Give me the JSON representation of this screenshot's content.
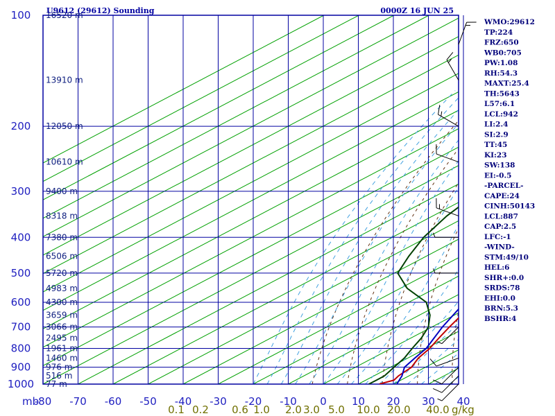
{
  "title_left": "U9612 (29612) Sounding",
  "title_right": "0000Z 16 JUN 25",
  "axis_unit_left": "mb",
  "axis_unit_right": "g/kg",
  "indices": [
    "WMO:29612",
    "TP:224",
    "FRZ:650",
    "WB0:705",
    "PW:1.08",
    "RH:54.3",
    "MAXT:25.4",
    "TH:5643",
    "L57:6.1",
    "LCL:942",
    "LI:2.4",
    "SI:2.9",
    "TT:45",
    "KI:23",
    "SW:138",
    "EI:-0.5",
    "-PARCEL-",
    "CAPE:24",
    "CINH:50143",
    "LCL:887",
    "CAP:2.5",
    "LFC:-1",
    "-WIND-",
    "STM:49/10",
    "HEL:6",
    "SHR+:0.0",
    "SRDS:78",
    "EHI:0.0",
    "BRN:5.3",
    "BSHR:4"
  ],
  "colors": {
    "frame": "#0000a0",
    "isotherm": "#00a000",
    "temperature": "#c00000",
    "dewpoint": "#004000",
    "parcel": "#0000c0",
    "dry_adiabat": "#603010",
    "moist_adiabat": "#40a0e0",
    "mixing_ratio_label": "#707000"
  },
  "chart_data": {
    "type": "line",
    "skew_t": true,
    "pressure_axis": "log",
    "xlim": [
      -80,
      40
    ],
    "ylim": [
      1000,
      100
    ],
    "pressure_ticks": [
      100,
      200,
      300,
      400,
      500,
      600,
      700,
      800,
      900,
      1000
    ],
    "temperature_ticks": [
      -80,
      -70,
      -60,
      -50,
      -40,
      -30,
      -20,
      -10,
      0,
      10,
      20,
      30,
      40
    ],
    "height_labels": [
      {
        "p": 100,
        "label": "16520 m"
      },
      {
        "p": 150,
        "label": "13910 m"
      },
      {
        "p": 200,
        "label": "12050 m"
      },
      {
        "p": 250,
        "label": "10610 m"
      },
      {
        "p": 300,
        "label": "9400 m"
      },
      {
        "p": 350,
        "label": "8318 m"
      },
      {
        "p": 400,
        "label": "7380 m"
      },
      {
        "p": 450,
        "label": "6506 m"
      },
      {
        "p": 500,
        "label": "5720 m"
      },
      {
        "p": 550,
        "label": "4983 m"
      },
      {
        "p": 600,
        "label": "4300 m"
      },
      {
        "p": 650,
        "label": "3659 m"
      },
      {
        "p": 700,
        "label": "3066 m"
      },
      {
        "p": 750,
        "label": "2495 m"
      },
      {
        "p": 800,
        "label": "1961 m"
      },
      {
        "p": 850,
        "label": "1460 m"
      },
      {
        "p": 900,
        "label": "976 m"
      },
      {
        "p": 950,
        "label": "516 m"
      },
      {
        "p": 1000,
        "label": "77 m"
      }
    ],
    "mixing_ratio_labels": [
      "0.1",
      "0.2",
      "0.6",
      "1.0",
      "2.0",
      "3.0",
      "5.0",
      "10.0",
      "20.0",
      "40.0"
    ],
    "series": [
      {
        "name": "temperature",
        "points": [
          [
            100,
            -55
          ],
          [
            145,
            -49
          ],
          [
            165,
            -50
          ],
          [
            205,
            -50
          ],
          [
            235,
            -48
          ],
          [
            255,
            -45
          ],
          [
            300,
            -37
          ],
          [
            350,
            -30
          ],
          [
            400,
            -24
          ],
          [
            450,
            -19
          ],
          [
            500,
            -12
          ],
          [
            550,
            -6
          ],
          [
            600,
            -1
          ],
          [
            650,
            2
          ],
          [
            700,
            5
          ],
          [
            750,
            8
          ],
          [
            800,
            11
          ],
          [
            850,
            13
          ],
          [
            900,
            16
          ],
          [
            950,
            17
          ],
          [
            975,
            18
          ],
          [
            1000,
            16
          ]
        ]
      },
      {
        "name": "dewpoint",
        "points": [
          [
            100,
            -77
          ],
          [
            150,
            -70
          ],
          [
            200,
            -68
          ],
          [
            250,
            -64
          ],
          [
            300,
            -60
          ],
          [
            350,
            -56
          ],
          [
            400,
            -51
          ],
          [
            450,
            -45
          ],
          [
            500,
            -39
          ],
          [
            550,
            -28
          ],
          [
            600,
            -15
          ],
          [
            650,
            -7
          ],
          [
            700,
            -1
          ],
          [
            750,
            3
          ],
          [
            800,
            6
          ],
          [
            850,
            9
          ],
          [
            900,
            11
          ],
          [
            950,
            13
          ],
          [
            975,
            13
          ],
          [
            1000,
            13
          ]
        ]
      },
      {
        "name": "parcel",
        "points": [
          [
            1000,
            21
          ],
          [
            950,
            18
          ],
          [
            900,
            14
          ],
          [
            850,
            12
          ],
          [
            800,
            10
          ],
          [
            700,
            3
          ],
          [
            600,
            -4
          ],
          [
            500,
            -14
          ],
          [
            400,
            -27
          ],
          [
            300,
            -44
          ],
          [
            200,
            -66
          ],
          [
            166,
            -77
          ]
        ]
      }
    ],
    "wind_barbs": [
      {
        "p": 1000,
        "dir": 225,
        "spd": 5
      },
      {
        "p": 950,
        "dir": 225,
        "spd": 10
      },
      {
        "p": 900,
        "dir": 225,
        "spd": 10
      },
      {
        "p": 850,
        "dir": 250,
        "spd": 10
      },
      {
        "p": 700,
        "dir": 225,
        "spd": 5
      },
      {
        "p": 500,
        "dir": 270,
        "spd": 5
      },
      {
        "p": 400,
        "dir": 270,
        "spd": 5
      },
      {
        "p": 350,
        "dir": 290,
        "spd": 15
      },
      {
        "p": 250,
        "dir": 290,
        "spd": 10
      },
      {
        "p": 200,
        "dir": 300,
        "spd": 15
      },
      {
        "p": 150,
        "dir": 330,
        "spd": 15
      },
      {
        "p": 120,
        "dir": 20,
        "spd": 15
      }
    ]
  }
}
